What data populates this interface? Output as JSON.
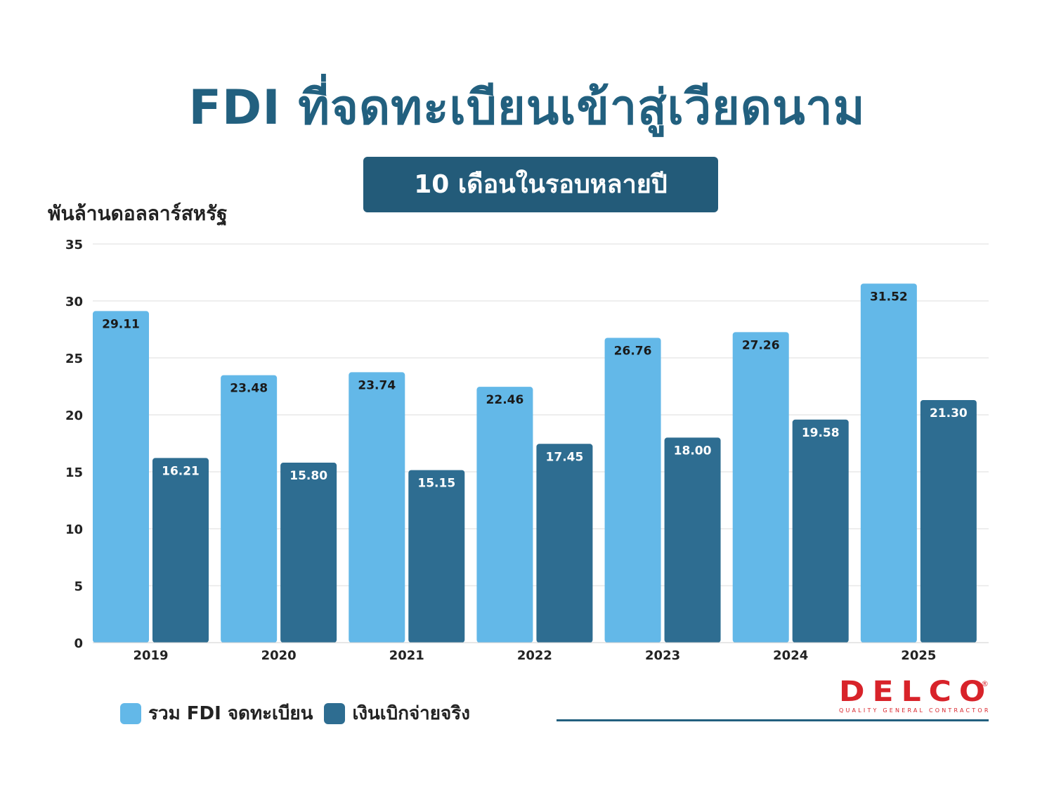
{
  "title": "FDI ที่จดทะเบียนเข้าสู่เวียดนาม",
  "subtitle": "10 เดือนในรอบหลายปี",
  "colors": {
    "registered": "#63b8e8",
    "disbursed": "#2e6d91",
    "title": "#22607f",
    "brand": "#d8232a"
  },
  "logo": {
    "name": "DELCO",
    "tagline": "QUALITY GENERAL CONTRACTOR",
    "reg": "®"
  },
  "chart_data": {
    "type": "bar",
    "ylabel": "พันล้านดอลลาร์สหรัฐ",
    "xlabel": "",
    "ylim": [
      0,
      35
    ],
    "yticks": [
      0,
      5,
      10,
      15,
      20,
      25,
      30,
      35
    ],
    "grid": true,
    "legend_position": "bottom-left",
    "categories": [
      "2019",
      "2020",
      "2021",
      "2022",
      "2023",
      "2024",
      "2025"
    ],
    "series": [
      {
        "name": "รวม FDI จดทะเบียน",
        "values": [
          29.11,
          23.48,
          23.74,
          22.46,
          26.76,
          27.26,
          31.52
        ],
        "labels": [
          "29.11",
          "23.48",
          "23.74",
          "22.46",
          "26.76",
          "27.26",
          "31.52"
        ]
      },
      {
        "name": "เงินเบิกจ่ายจริง",
        "values": [
          16.21,
          15.8,
          15.15,
          17.45,
          18.0,
          19.58,
          21.3
        ],
        "labels": [
          "16.21",
          "15.80",
          "15.15",
          "17.45",
          "18.00",
          "19.58",
          "21.30"
        ]
      }
    ]
  }
}
